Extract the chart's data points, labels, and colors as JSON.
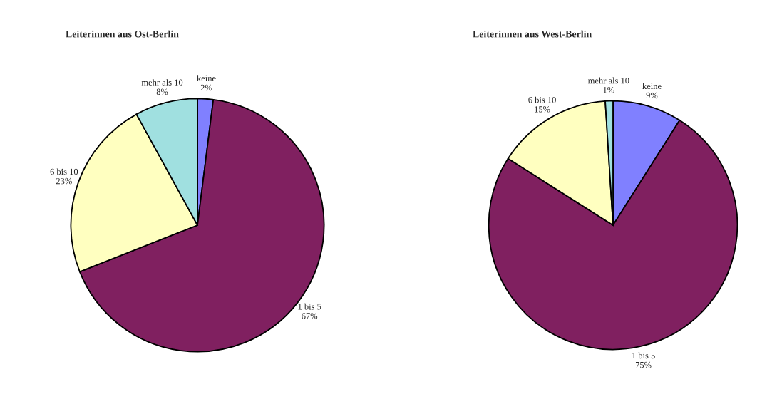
{
  "chart_data": [
    {
      "type": "pie",
      "title": "Leiterinnen aus Ost-Berlin",
      "categories": [
        "keine",
        "1 bis 5",
        "6 bis 10",
        "mehr als 10"
      ],
      "values": [
        2,
        67,
        23,
        8
      ],
      "value_labels": [
        "2%",
        "67%",
        "23%",
        "8%"
      ],
      "colors": [
        "#8080ff",
        "#802060",
        "#ffffc0",
        "#a0e0e0"
      ]
    },
    {
      "type": "pie",
      "title": "Leiterinnen aus West-Berlin",
      "categories": [
        "keine",
        "1 bis 5",
        "6 bis 10",
        "mehr als 10"
      ],
      "values": [
        9,
        75,
        15,
        1
      ],
      "value_labels": [
        "9%",
        "75%",
        "15%",
        "1%"
      ],
      "colors": [
        "#8080ff",
        "#802060",
        "#ffffc0",
        "#a0e0e0"
      ]
    }
  ]
}
